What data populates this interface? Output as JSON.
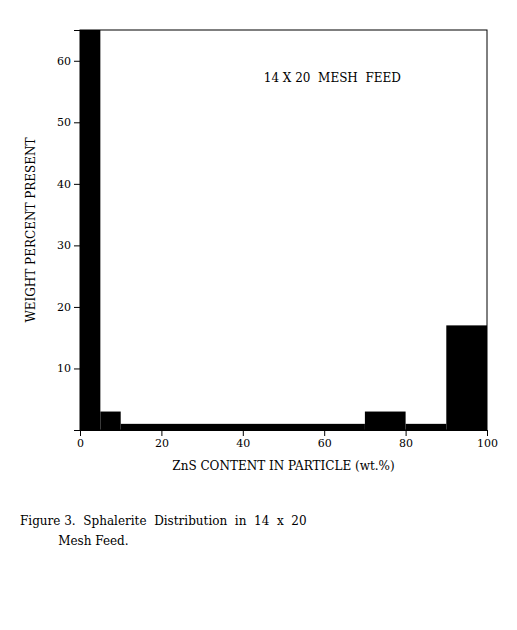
{
  "chart_data": {
    "type": "histogram",
    "xlabel": "ZnS CONTENT IN PARTICLE (wt.%)",
    "ylabel": "WEIGHT PERCENT PRESENT",
    "annotations": [
      "14 X 20  MESH  FEED"
    ],
    "caption": [
      "Figure 3.  Sphalerite  Distribution  in  14  x  20",
      "          Mesh Feed."
    ],
    "bins": [
      0,
      5,
      10,
      70,
      80,
      90,
      100
    ],
    "values": [
      65,
      3,
      1,
      3,
      1,
      17
    ],
    "color": "#000000",
    "xlim": [
      0,
      100
    ],
    "ylim": [
      0,
      65
    ],
    "xticks": [
      0,
      20,
      40,
      60,
      80,
      100
    ],
    "yticks": [
      10,
      20,
      30,
      40,
      50,
      60
    ]
  }
}
